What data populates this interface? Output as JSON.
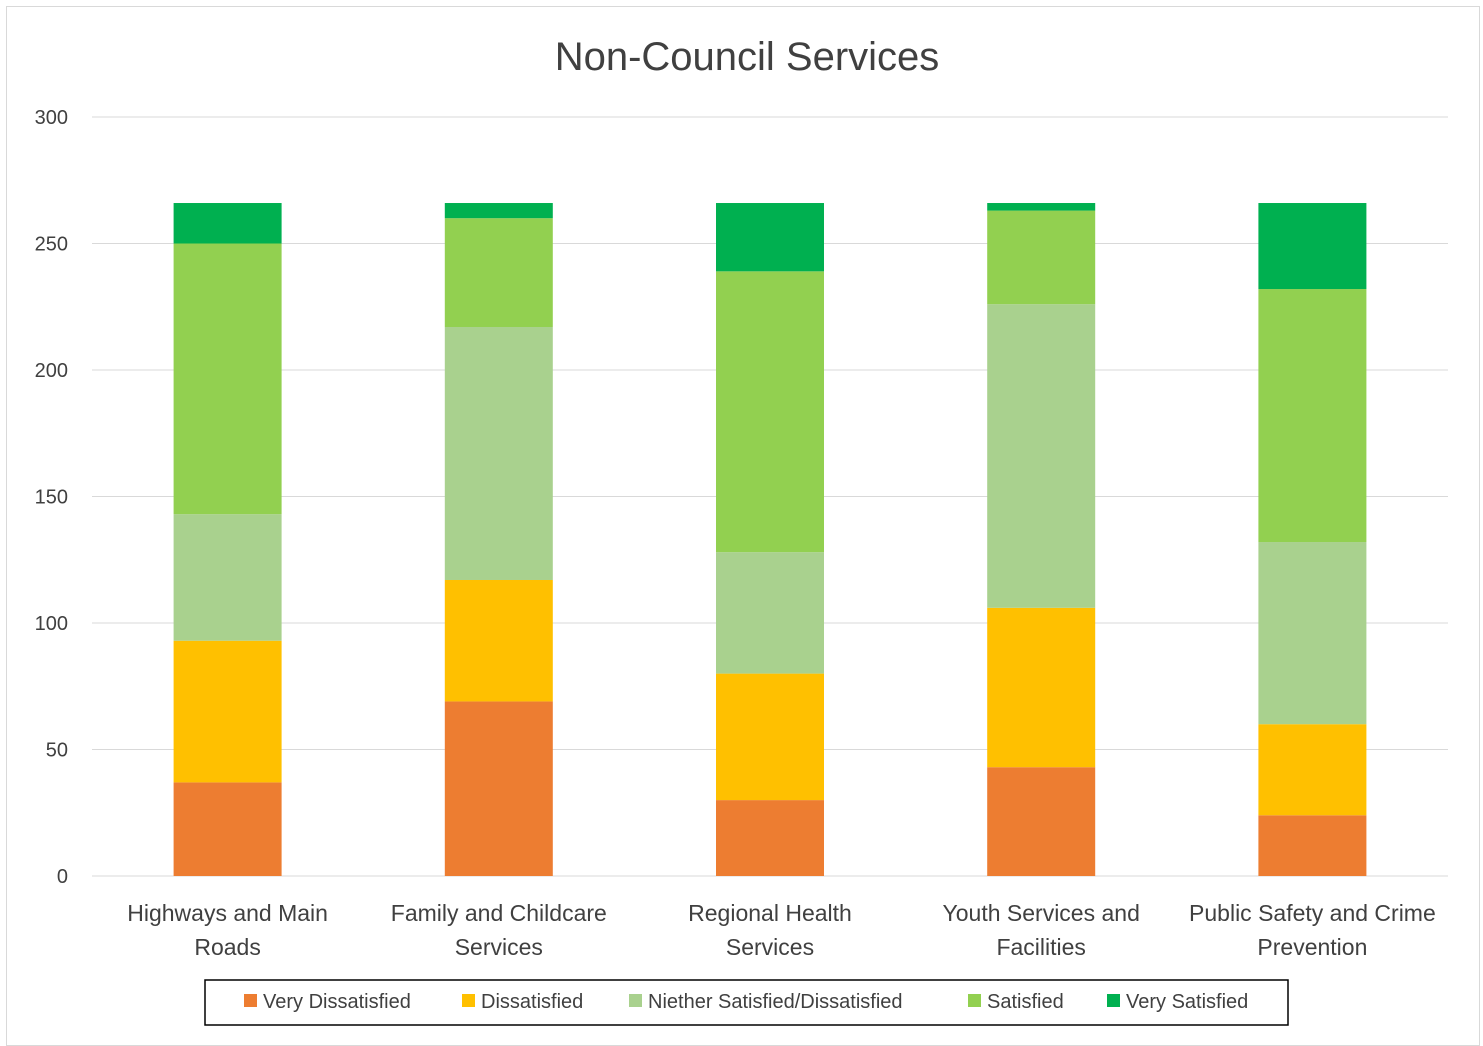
{
  "chart_data": {
    "type": "bar",
    "stacked": true,
    "title": "Non-Council Services",
    "xlabel": "",
    "ylabel": "",
    "ylim": [
      0,
      300
    ],
    "yticks": [
      0,
      50,
      100,
      150,
      200,
      250,
      300
    ],
    "grid": true,
    "legend_position": "bottom",
    "categories": [
      [
        "Highways and Main",
        "Roads"
      ],
      [
        "Family and Childcare",
        "Services"
      ],
      [
        "Regional Health",
        "Services"
      ],
      [
        "Youth Services and",
        "Facilities"
      ],
      [
        "Public Safety and Crime",
        "Prevention"
      ]
    ],
    "series": [
      {
        "name": "Very Dissatisfied",
        "color": "#ed7d31",
        "values": [
          37,
          69,
          30,
          43,
          24
        ]
      },
      {
        "name": "Dissatisfied",
        "color": "#ffc000",
        "values": [
          56,
          48,
          50,
          63,
          36
        ]
      },
      {
        "name": "Niether Satisfied/Dissatisfied",
        "color": "#a9d18e",
        "values": [
          50,
          100,
          48,
          120,
          72
        ]
      },
      {
        "name": "Satisfied",
        "color": "#92d050",
        "values": [
          107,
          43,
          111,
          37,
          100
        ]
      },
      {
        "name": "Very Satisfied",
        "color": "#00b050",
        "values": [
          16,
          6,
          27,
          3,
          34
        ]
      }
    ]
  }
}
